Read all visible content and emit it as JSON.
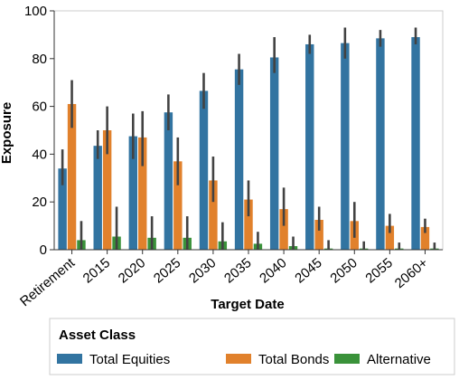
{
  "chart_data": {
    "type": "bar",
    "xlabel": "Target Date",
    "ylabel": "Exposure",
    "ylim": [
      0,
      100
    ],
    "yticks": [
      0,
      20,
      40,
      60,
      80,
      100
    ],
    "grid": false,
    "legend": {
      "title": "Asset Class",
      "placement": "bottom"
    },
    "categories": [
      "Retirement",
      "2015",
      "2020",
      "2025",
      "2030",
      "2035",
      "2040",
      "2045",
      "2050",
      "2055",
      "2060+"
    ],
    "series": [
      {
        "name": "Total Equities",
        "color": "#3274a1",
        "values": [
          34,
          43.5,
          47.5,
          57.5,
          66.5,
          75.5,
          80.5,
          86,
          86.5,
          88.5,
          89
        ],
        "ci_low": [
          27,
          38,
          38,
          50,
          59,
          69,
          74,
          82,
          80,
          85,
          86
        ],
        "ci_high": [
          42,
          50,
          57,
          65,
          74,
          82,
          89,
          90,
          93,
          92,
          93
        ]
      },
      {
        "name": "Total Bonds",
        "color": "#e1812c",
        "values": [
          61,
          50,
          47,
          37,
          29,
          21,
          17,
          12.5,
          12,
          10,
          9.5
        ],
        "ci_low": [
          51,
          40,
          35,
          27,
          20,
          14,
          10,
          8,
          5,
          7,
          7
        ],
        "ci_high": [
          71,
          60,
          58,
          47,
          39,
          29,
          26,
          18,
          20,
          15,
          13
        ]
      },
      {
        "name": "Alternative",
        "color": "#3a923a",
        "values": [
          4,
          5.5,
          5,
          5,
          3.5,
          2.5,
          1.5,
          0.5,
          0.5,
          0.5,
          0.5
        ],
        "ci_low": [
          0,
          0,
          0,
          0,
          0,
          0,
          0,
          0,
          0,
          0,
          0
        ],
        "ci_high": [
          12,
          18,
          14,
          14,
          11.5,
          7.5,
          5.5,
          4,
          3.5,
          3,
          3
        ]
      }
    ]
  }
}
